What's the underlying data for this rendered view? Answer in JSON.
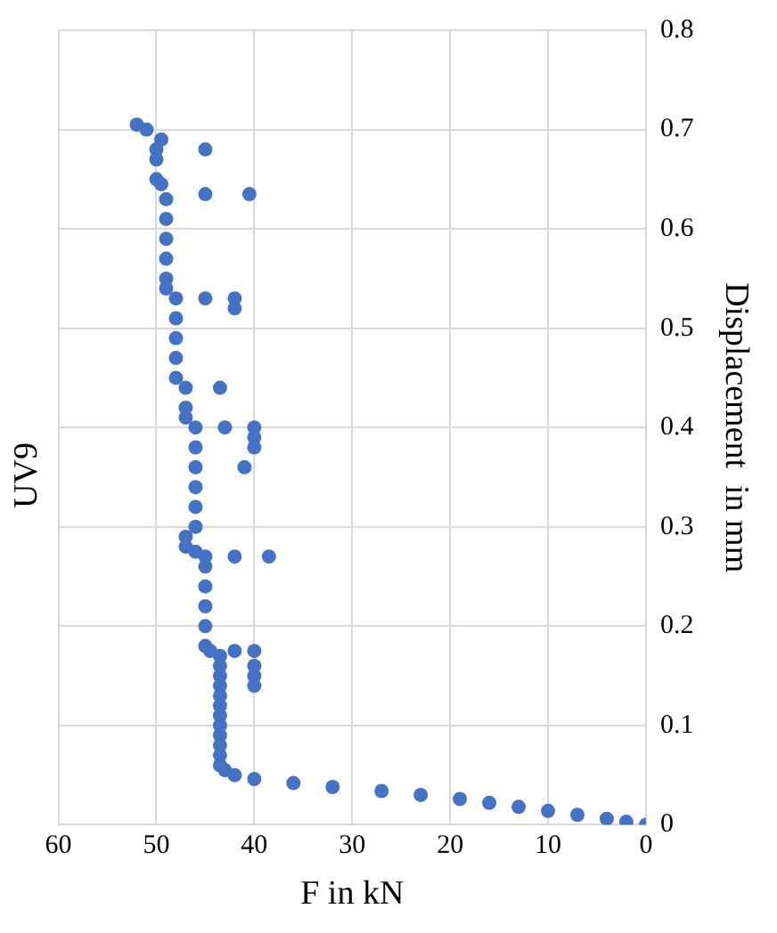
{
  "chart_data": {
    "type": "scatter",
    "title": "UV9",
    "xlabel": "F in kN",
    "ylabel": "Displacement  in mm",
    "color": "#4472c4",
    "marker": "circle",
    "grid": true,
    "legend": false,
    "xlim": [
      60,
      0
    ],
    "xticks": [
      60,
      50,
      40,
      30,
      20,
      10,
      0
    ],
    "ylim": [
      0,
      0.8
    ],
    "yticks": [
      0,
      0.1,
      0.2,
      0.3,
      0.4,
      0.5,
      0.6,
      0.7,
      0.8
    ],
    "x": [
      0,
      2,
      4,
      7,
      10,
      13,
      16,
      19,
      23,
      27,
      32,
      36,
      40,
      42,
      43,
      43.5,
      43.5,
      43.5,
      43.5,
      43.5,
      43.5,
      43.5,
      43.5,
      43.5,
      43.5,
      43.5,
      43.5,
      44.5,
      42,
      40,
      40,
      40,
      40,
      45,
      45,
      45,
      45,
      45,
      45,
      42,
      38.5,
      46,
      47,
      47,
      46,
      46,
      46,
      46,
      46,
      46,
      43,
      40,
      40,
      40,
      41,
      47,
      47,
      47,
      43.5,
      48,
      48,
      48,
      48,
      48,
      45,
      42,
      42,
      49,
      49,
      49,
      49,
      49,
      49,
      45,
      40.5,
      49.5,
      50,
      50,
      50,
      45,
      49.5,
      51,
      52
    ],
    "values": [
      0,
      0.003,
      0.006,
      0.01,
      0.014,
      0.018,
      0.022,
      0.026,
      0.03,
      0.034,
      0.038,
      0.042,
      0.046,
      0.05,
      0.055,
      0.06,
      0.07,
      0.08,
      0.09,
      0.1,
      0.11,
      0.12,
      0.13,
      0.14,
      0.15,
      0.16,
      0.17,
      0.175,
      0.175,
      0.175,
      0.16,
      0.15,
      0.14,
      0.18,
      0.2,
      0.22,
      0.24,
      0.26,
      0.27,
      0.27,
      0.27,
      0.275,
      0.28,
      0.29,
      0.3,
      0.32,
      0.34,
      0.36,
      0.38,
      0.4,
      0.4,
      0.4,
      0.39,
      0.38,
      0.36,
      0.41,
      0.42,
      0.44,
      0.44,
      0.45,
      0.47,
      0.49,
      0.51,
      0.53,
      0.53,
      0.53,
      0.52,
      0.54,
      0.55,
      0.57,
      0.59,
      0.61,
      0.63,
      0.635,
      0.635,
      0.645,
      0.65,
      0.67,
      0.68,
      0.68,
      0.69,
      0.7,
      0.705
    ]
  }
}
